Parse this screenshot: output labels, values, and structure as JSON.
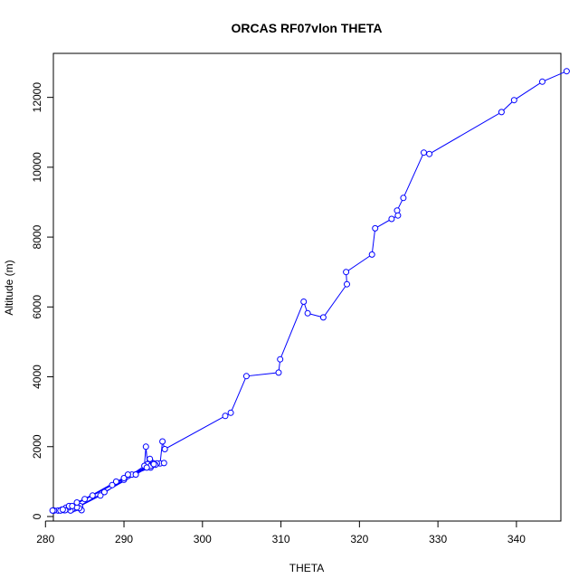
{
  "chart_data": {
    "type": "line",
    "title": "ORCAS RF07vlon THETA",
    "xlabel": "THETA",
    "ylabel": "Altitude (m)",
    "xlim": [
      280,
      347
    ],
    "ylim": [
      0,
      13000
    ],
    "xticks": [
      280,
      290,
      300,
      310,
      320,
      330,
      340
    ],
    "yticks": [
      0,
      2000,
      4000,
      6000,
      8000,
      10000,
      12000
    ],
    "grid": false,
    "legend": "none",
    "color": "#0000ff",
    "markers": "open-circle",
    "series": [
      {
        "x": [
          346.4,
          343.3,
          339.7,
          338.1,
          328.9,
          328.2,
          325.6,
          324.8,
          324.9,
          324.1,
          322.0,
          321.6,
          318.3,
          318.4,
          315.4,
          313.4,
          312.9,
          309.9,
          309.7,
          305.6,
          303.6,
          302.9,
          295.2,
          294.9,
          294.6,
          293.3,
          293.0,
          292.8,
          292.6,
          290.0,
          287.0,
          284.4,
          283.7,
          283.4,
          282.9,
          282.2,
          281.6,
          281.1,
          280.9,
          282.4,
          283.2,
          284.6,
          284.3,
          283.1,
          282.6,
          282.1,
          281.9,
          283.0,
          286.0,
          291.0,
          293.6,
          294.2,
          295.1,
          294.0,
          293.4,
          290.0,
          285.0,
          283.0,
          282.5,
          284.0,
          287.5,
          291.5,
          293.4,
          293.7,
          289.0,
          283.4,
          282.2,
          284.0,
          288.5,
          293.8,
          292.9,
          290.5
        ],
        "y": [
          12750,
          12450,
          11920,
          11580,
          10380,
          10420,
          9120,
          8760,
          8620,
          8520,
          8250,
          7500,
          7000,
          6650,
          5700,
          5820,
          6150,
          4500,
          4120,
          4020,
          2970,
          2880,
          1930,
          2150,
          1520,
          1650,
          1500,
          2000,
          1450,
          1050,
          600,
          300,
          230,
          200,
          210,
          190,
          170,
          170,
          170,
          180,
          170,
          180,
          240,
          290,
          250,
          200,
          170,
          260,
          600,
          1200,
          1500,
          1520,
          1530,
          1480,
          1400,
          1100,
          500,
          300,
          180,
          260,
          700,
          1200,
          1450,
          1520,
          1000,
          300,
          200,
          400,
          900,
          1500,
          1400,
          1200
        ]
      }
    ]
  }
}
